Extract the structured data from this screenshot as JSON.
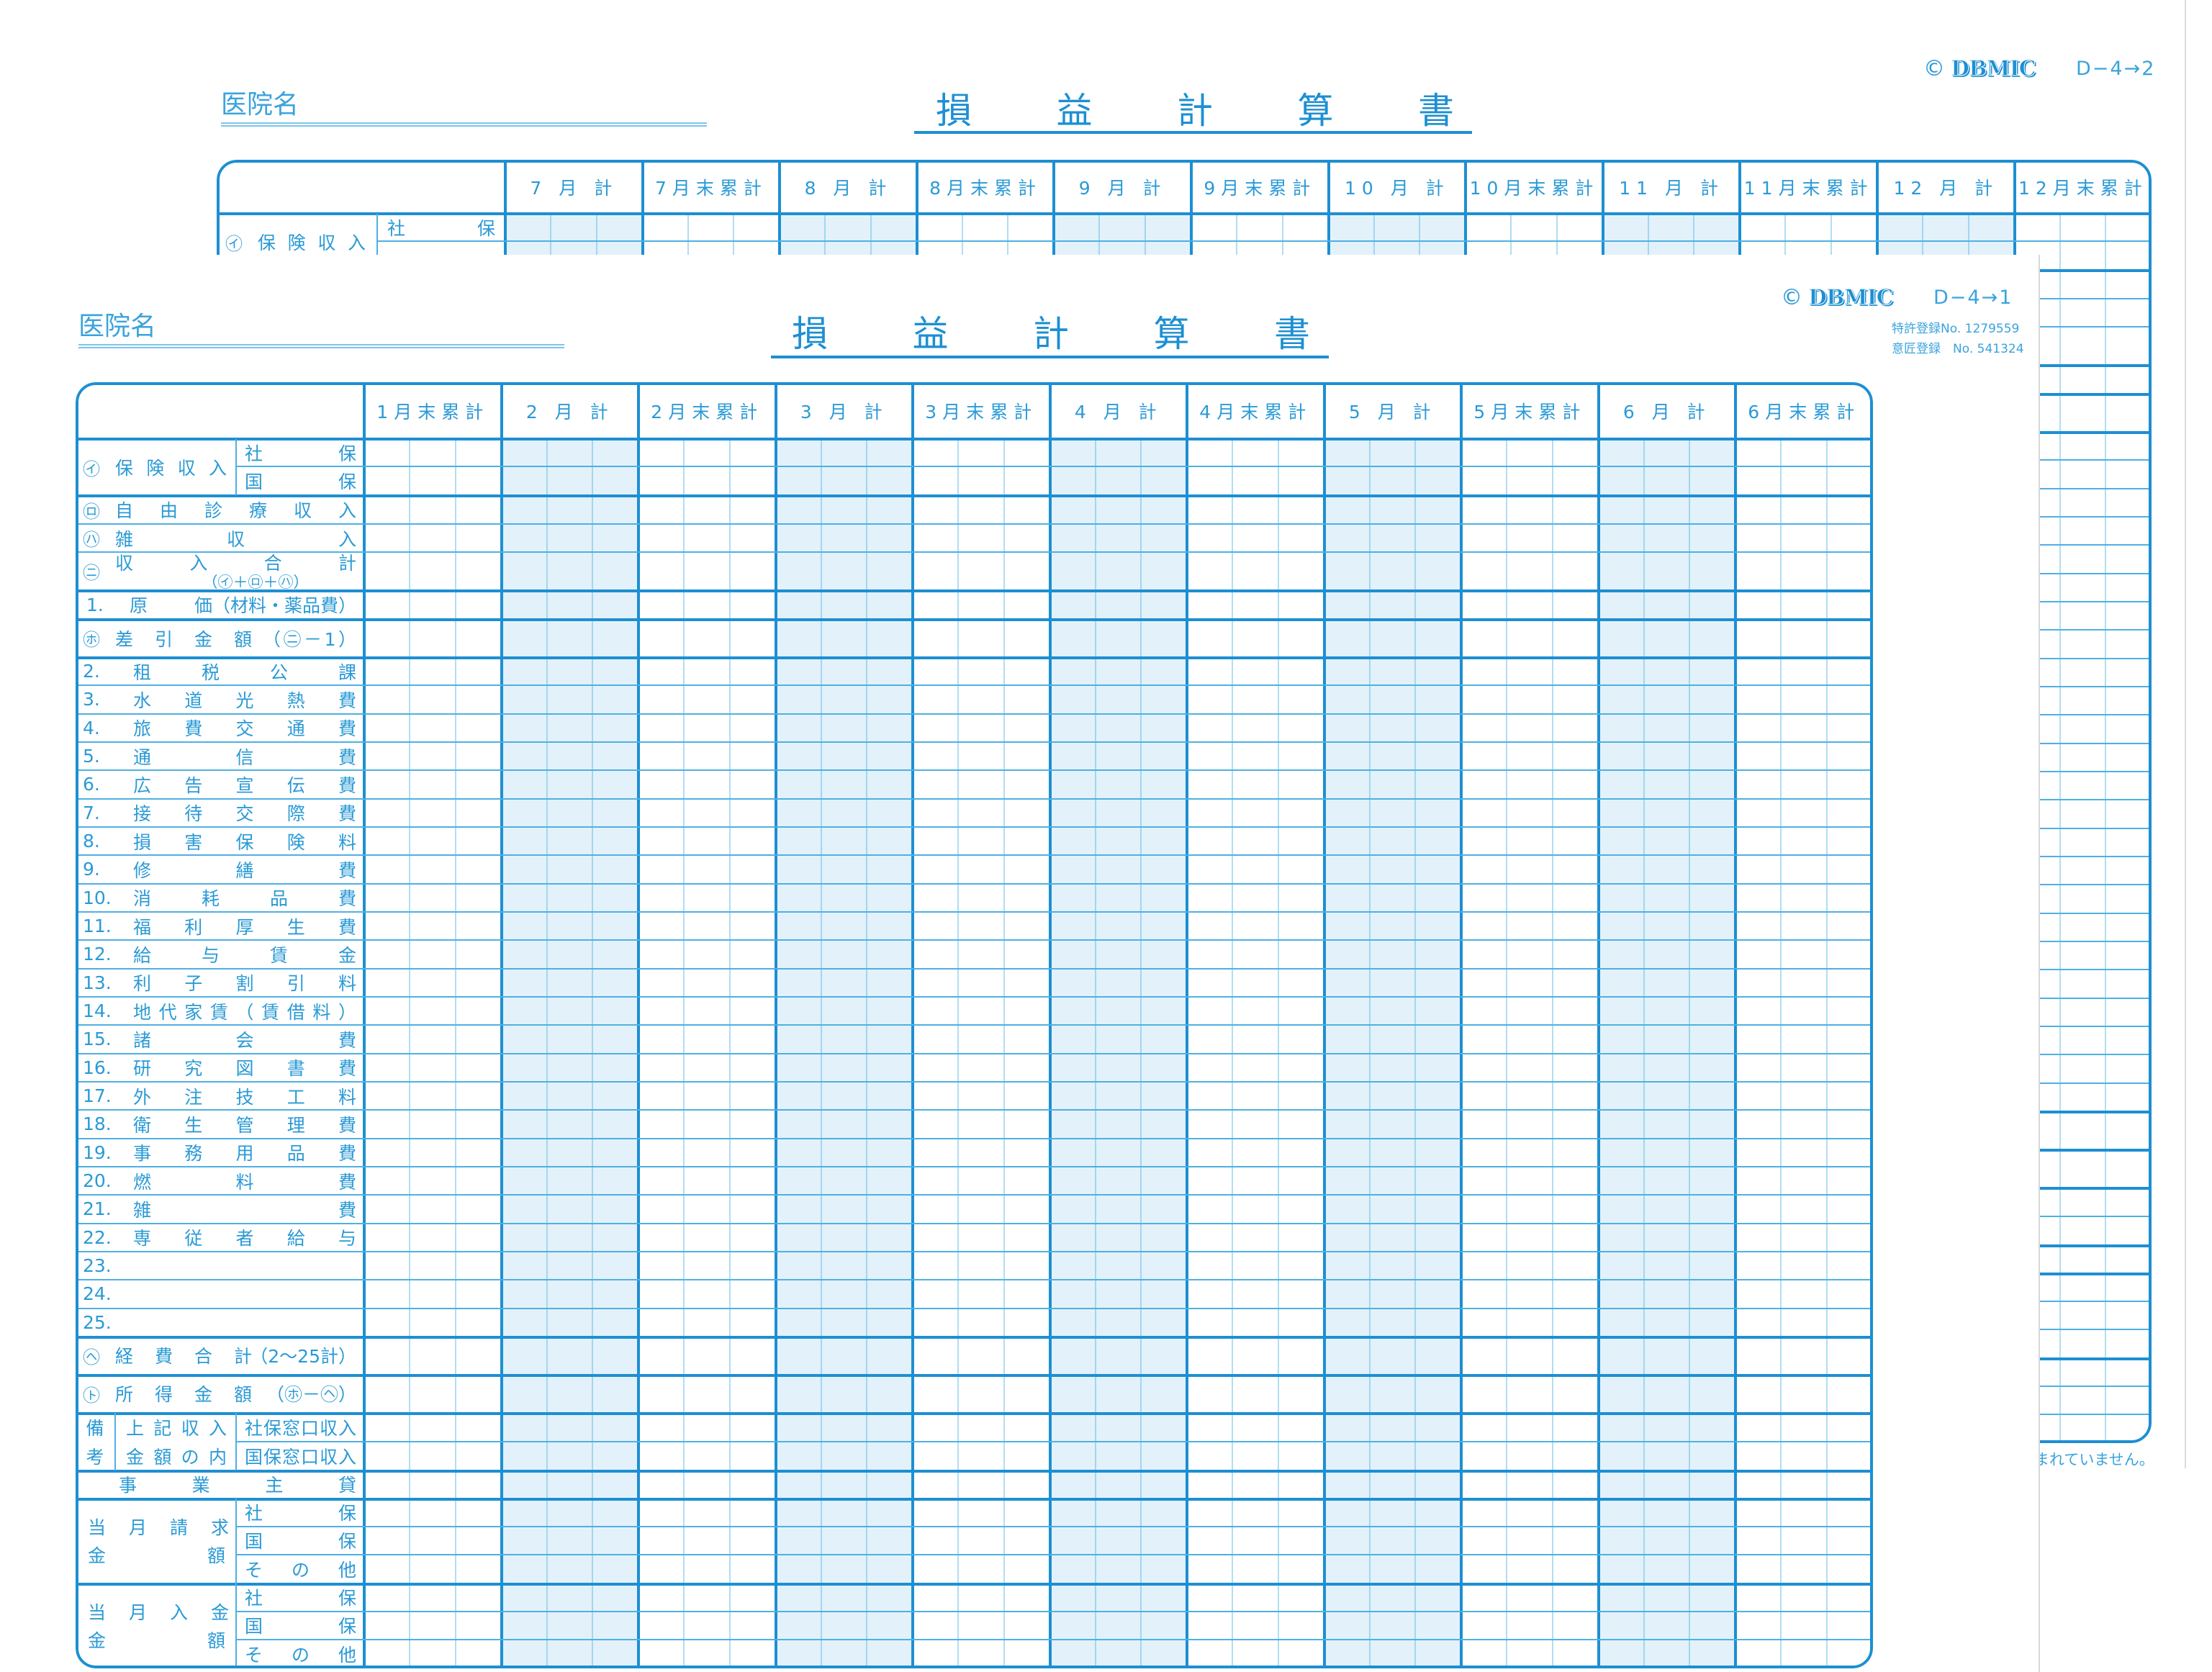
{
  "colors": {
    "line": "#1d8fd2",
    "thin_line": "#4fb0e2",
    "shade": "#e3f1fa",
    "text": "#2a9ad6"
  },
  "back": {
    "hospital_label": "医院名",
    "title": "損益計算書",
    "copyright": "©",
    "logo": "DBMIC",
    "form_code": "D−4→2",
    "columns": [
      {
        "label": "7 月 計",
        "shaded": true
      },
      {
        "label": "7月末累計",
        "shaded": false
      },
      {
        "label": "8 月 計",
        "shaded": true
      },
      {
        "label": "8月末累計",
        "shaded": false
      },
      {
        "label": "9 月 計",
        "shaded": true
      },
      {
        "label": "9月末累計",
        "shaded": false
      },
      {
        "label": "10 月 計",
        "shaded": true
      },
      {
        "label": "10月末累計",
        "shaded": false
      },
      {
        "label": "11 月 計",
        "shaded": true
      },
      {
        "label": "11月末累計",
        "shaded": false
      },
      {
        "label": "12 月 計",
        "shaded": true
      },
      {
        "label": "12月末累計",
        "shaded": false
      }
    ],
    "insurance": {
      "mark": "㋑",
      "text": "保険収入",
      "sub1": "社保"
    },
    "footnote": "まれていません。"
  },
  "front": {
    "hospital_label": "医院名",
    "title": "損益計算書",
    "copyright": "©",
    "logo": "DBMIC",
    "form_code": "D−4→1",
    "patent": "特許登録No. 1279559",
    "design": "意匠登録　No. 541324",
    "columns": [
      {
        "label": "1月末累計",
        "shaded": false
      },
      {
        "label": "2 月 計",
        "shaded": true
      },
      {
        "label": "2月末累計",
        "shaded": false
      },
      {
        "label": "3 月 計",
        "shaded": true
      },
      {
        "label": "3月末累計",
        "shaded": false
      },
      {
        "label": "4 月 計",
        "shaded": true
      },
      {
        "label": "4月末累計",
        "shaded": false
      },
      {
        "label": "5 月 計",
        "shaded": true
      },
      {
        "label": "5月末累計",
        "shaded": false
      },
      {
        "label": "6 月 計",
        "shaded": true
      },
      {
        "label": "6月末累計",
        "shaded": false
      }
    ],
    "rows": {
      "insurance": {
        "mark": "㋑",
        "text": "保険収入",
        "sub1": "社保",
        "sub2": "国保"
      },
      "free_care": {
        "mark": "㋺",
        "text": "自由診療収入"
      },
      "misc_income": {
        "mark": "㋩",
        "text": "雑収入"
      },
      "income_total": {
        "mark": "㋥",
        "text": "収入合計",
        "formula": "（㋑＋㋺＋㋩）"
      },
      "cost": {
        "num": "1.",
        "text1": "原",
        "text2": "価（材料・薬品費）"
      },
      "gross": {
        "mark": "㋭",
        "text": "差引金額",
        "formula": "（㋥－1）"
      },
      "expenses": [
        {
          "num": "2.",
          "text": "租税公課"
        },
        {
          "num": "3.",
          "text": "水道光熱費"
        },
        {
          "num": "4.",
          "text": "旅費交通費"
        },
        {
          "num": "5.",
          "text": "通信費"
        },
        {
          "num": "6.",
          "text": "広告宣伝費"
        },
        {
          "num": "7.",
          "text": "接待交際費"
        },
        {
          "num": "8.",
          "text": "損害保険料"
        },
        {
          "num": "9.",
          "text": "修繕費"
        },
        {
          "num": "10.",
          "text": "消耗品費"
        },
        {
          "num": "11.",
          "text": "福利厚生費"
        },
        {
          "num": "12.",
          "text": "給与賃金"
        },
        {
          "num": "13.",
          "text": "利子割引料"
        },
        {
          "num": "14.",
          "text": "地代家賃（賃借料）"
        },
        {
          "num": "15.",
          "text": "諸会費"
        },
        {
          "num": "16.",
          "text": "研究図書費"
        },
        {
          "num": "17.",
          "text": "外注技工料"
        },
        {
          "num": "18.",
          "text": "衛生管理費"
        },
        {
          "num": "19.",
          "text": "事務用品費"
        },
        {
          "num": "20.",
          "text": "燃料費"
        },
        {
          "num": "21.",
          "text": "雑費"
        },
        {
          "num": "22.",
          "text": "専従者給与"
        },
        {
          "num": "23.",
          "text": ""
        },
        {
          "num": "24.",
          "text": ""
        },
        {
          "num": "25.",
          "text": ""
        }
      ],
      "expense_total": {
        "mark": "㋬",
        "text": "経費合計",
        "formula": "（2～25計）"
      },
      "income_amount": {
        "mark": "㋣",
        "text": "所得金額",
        "formula": "（㋭－㋬）"
      },
      "remarks": {
        "label1": "備",
        "label2": "考",
        "text1": "上記収入",
        "text2": "金額の内",
        "sub1": "社保窓口収入",
        "sub2": "国保窓口収入"
      },
      "owner_draw": "事業主貸",
      "billed": {
        "line1": "当月請求",
        "line2a": "金",
        "line2b": "額",
        "sub1": "社保",
        "sub2": "国保",
        "sub3": "その他"
      },
      "received": {
        "line1": "当月入金",
        "line2a": "金",
        "line2b": "額",
        "sub1": "社保",
        "sub2": "国保",
        "sub3": "その他"
      }
    }
  }
}
